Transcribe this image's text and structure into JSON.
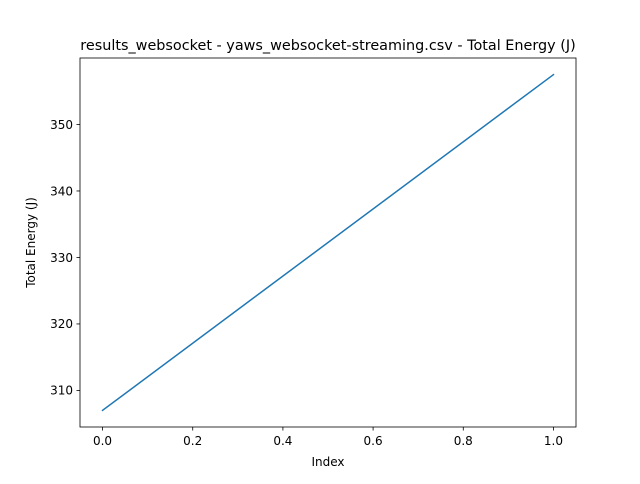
{
  "chart_data": {
    "type": "line",
    "title": "results_websocket - yaws_websocket-streaming.csv - Total Energy (J)",
    "xlabel": "Index",
    "ylabel": "Total Energy (J)",
    "xlim": [
      -0.05,
      1.05
    ],
    "ylim": [
      304.5,
      360.0
    ],
    "x_ticks": [
      0.0,
      0.2,
      0.4,
      0.6,
      0.8,
      1.0
    ],
    "x_tick_labels": [
      "0.0",
      "0.2",
      "0.4",
      "0.6",
      "0.8",
      "1.0"
    ],
    "y_ticks": [
      310,
      320,
      330,
      340,
      350
    ],
    "y_tick_labels": [
      "310",
      "320",
      "330",
      "340",
      "350"
    ],
    "grid": false,
    "series": [
      {
        "color": "#1f77b4",
        "x": [
          0,
          1
        ],
        "values": [
          307.0,
          357.5
        ]
      }
    ]
  }
}
